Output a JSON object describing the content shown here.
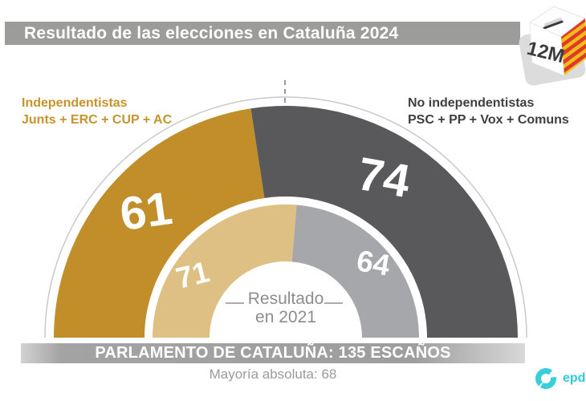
{
  "header": {
    "title": "Resultado de las elecciones en Cataluña 2024"
  },
  "ballot_box": {
    "date_label": "12M"
  },
  "groups": {
    "left": {
      "title": "Independentistas",
      "parties": "Junts + ERC + CUP + AC",
      "color": "#c6932d"
    },
    "right": {
      "title": "No independentistas",
      "parties": "PSC + PP + Vox + Comuns",
      "color": "#3f3f41"
    }
  },
  "chart_data": {
    "type": "pie",
    "variant": "half-donut-two-rings",
    "title": "Resultado de las elecciones en Cataluña 2024",
    "total_seats": 135,
    "majority_seats": 68,
    "rings": [
      {
        "name": "2024",
        "position": "outer",
        "segments": [
          {
            "label": "Independentistas (Junts + ERC + CUP + AC)",
            "value": 61,
            "color": "#c28e2a"
          },
          {
            "label": "No independentistas (PSC + PP + Vox + Comuns)",
            "value": 74,
            "color": "#59595b"
          }
        ]
      },
      {
        "name": "2021",
        "position": "inner",
        "segments": [
          {
            "label": "Independentistas",
            "value": 71,
            "color": "#dfc084"
          },
          {
            "label": "No independentistas",
            "value": 64,
            "color": "#a5a7aa"
          }
        ]
      }
    ],
    "center_label": {
      "line1": "Resultado",
      "line2": "en 2021"
    }
  },
  "footer": {
    "parliament_label": "PARLAMENTO DE CATALUÑA: 135 ESCAÑOS",
    "majority_label": "Mayoría absoluta: 68"
  },
  "branding": {
    "name": "epdata",
    "color": "#30cbd9"
  }
}
